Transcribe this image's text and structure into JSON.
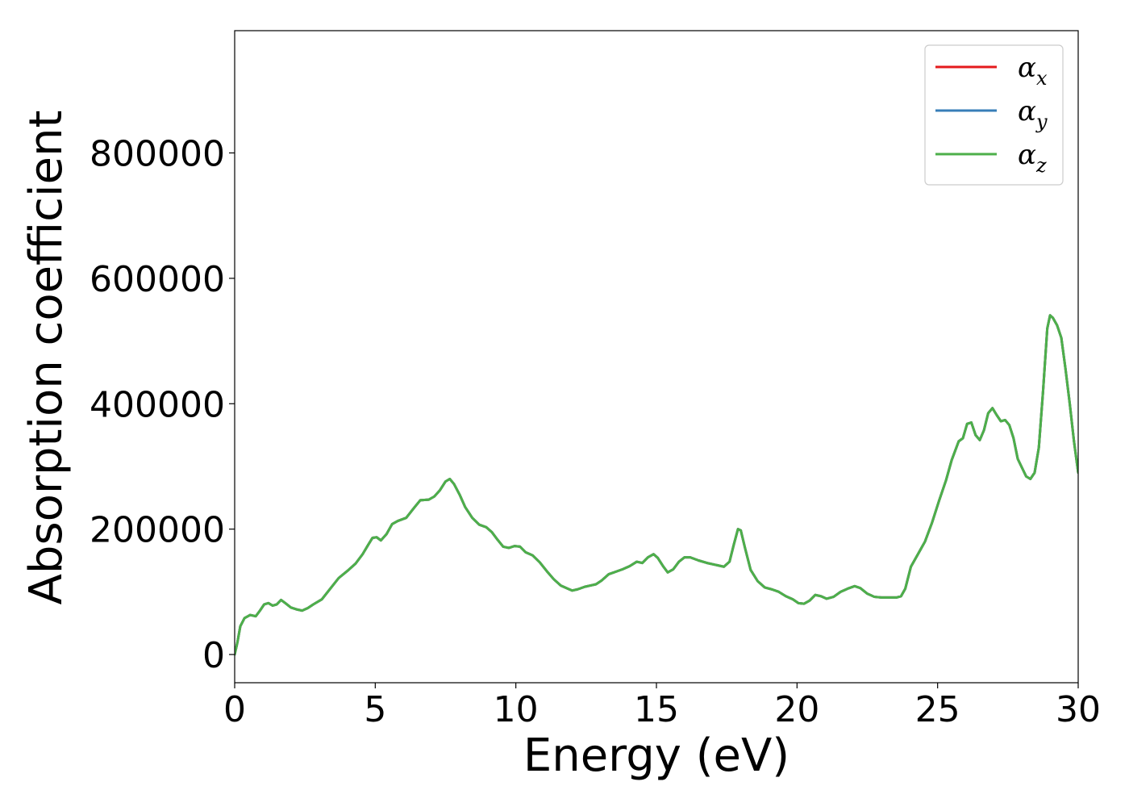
{
  "chart_data": {
    "type": "line",
    "title": "",
    "xlabel": "Energy (eV)",
    "ylabel": "Absorption coefficient",
    "xlim": [
      0,
      30
    ],
    "ylim": [
      -45000,
      995000
    ],
    "x_ticks": [
      0,
      5,
      10,
      15,
      20,
      25,
      30
    ],
    "y_ticks": [
      0,
      200000,
      400000,
      600000,
      800000
    ],
    "x_tick_labels": [
      "0",
      "5",
      "10",
      "15",
      "20",
      "25",
      "30"
    ],
    "y_tick_labels": [
      "0",
      "200000",
      "400000",
      "600000",
      "800000"
    ],
    "grid": false,
    "legend_position": "upper right",
    "series": [
      {
        "name": "αx",
        "legend_base": "α",
        "legend_sub": "x",
        "color": "#e41a1c",
        "values_ref": "shared"
      },
      {
        "name": "αy",
        "legend_base": "α",
        "legend_sub": "y",
        "color": "#377eb8",
        "values_ref": "shared"
      },
      {
        "name": "αz",
        "legend_base": "α",
        "legend_sub": "z",
        "color": "#4daf4a",
        "values_ref": "shared"
      }
    ],
    "shared_values": [
      [
        0.0,
        0
      ],
      [
        0.1,
        20000
      ],
      [
        0.2,
        45000
      ],
      [
        0.35,
        58000
      ],
      [
        0.55,
        63000
      ],
      [
        0.75,
        61000
      ],
      [
        0.9,
        70000
      ],
      [
        1.05,
        80000
      ],
      [
        1.2,
        82000
      ],
      [
        1.35,
        78000
      ],
      [
        1.5,
        80000
      ],
      [
        1.65,
        87000
      ],
      [
        1.8,
        82000
      ],
      [
        2.0,
        75000
      ],
      [
        2.2,
        72000
      ],
      [
        2.4,
        70000
      ],
      [
        2.6,
        74000
      ],
      [
        2.8,
        80000
      ],
      [
        3.1,
        88000
      ],
      [
        3.4,
        105000
      ],
      [
        3.7,
        122000
      ],
      [
        4.0,
        133000
      ],
      [
        4.3,
        145000
      ],
      [
        4.55,
        160000
      ],
      [
        4.75,
        175000
      ],
      [
        4.9,
        186000
      ],
      [
        5.05,
        187000
      ],
      [
        5.2,
        182000
      ],
      [
        5.4,
        192000
      ],
      [
        5.6,
        208000
      ],
      [
        5.8,
        213000
      ],
      [
        6.1,
        218000
      ],
      [
        6.4,
        235000
      ],
      [
        6.6,
        246000
      ],
      [
        6.9,
        247000
      ],
      [
        7.1,
        252000
      ],
      [
        7.3,
        262000
      ],
      [
        7.5,
        276000
      ],
      [
        7.65,
        280000
      ],
      [
        7.8,
        272000
      ],
      [
        8.0,
        255000
      ],
      [
        8.2,
        235000
      ],
      [
        8.45,
        218000
      ],
      [
        8.7,
        207000
      ],
      [
        8.95,
        203000
      ],
      [
        9.15,
        195000
      ],
      [
        9.35,
        183000
      ],
      [
        9.55,
        172000
      ],
      [
        9.75,
        170000
      ],
      [
        9.95,
        173000
      ],
      [
        10.15,
        172000
      ],
      [
        10.35,
        163000
      ],
      [
        10.6,
        158000
      ],
      [
        10.85,
        147000
      ],
      [
        11.1,
        133000
      ],
      [
        11.35,
        120000
      ],
      [
        11.6,
        110000
      ],
      [
        11.85,
        105000
      ],
      [
        12.0,
        102000
      ],
      [
        12.2,
        104000
      ],
      [
        12.45,
        108000
      ],
      [
        12.65,
        110000
      ],
      [
        12.85,
        112000
      ],
      [
        13.05,
        118000
      ],
      [
        13.3,
        128000
      ],
      [
        13.55,
        132000
      ],
      [
        13.8,
        136000
      ],
      [
        14.05,
        141000
      ],
      [
        14.3,
        148000
      ],
      [
        14.5,
        146000
      ],
      [
        14.7,
        155000
      ],
      [
        14.9,
        160000
      ],
      [
        15.05,
        154000
      ],
      [
        15.25,
        140000
      ],
      [
        15.4,
        131000
      ],
      [
        15.6,
        136000
      ],
      [
        15.8,
        148000
      ],
      [
        16.0,
        155000
      ],
      [
        16.2,
        155000
      ],
      [
        16.5,
        150000
      ],
      [
        16.8,
        146000
      ],
      [
        17.1,
        143000
      ],
      [
        17.4,
        140000
      ],
      [
        17.6,
        148000
      ],
      [
        17.75,
        175000
      ],
      [
        17.9,
        200000
      ],
      [
        18.0,
        198000
      ],
      [
        18.15,
        170000
      ],
      [
        18.35,
        135000
      ],
      [
        18.6,
        117000
      ],
      [
        18.85,
        107000
      ],
      [
        19.1,
        104000
      ],
      [
        19.35,
        100000
      ],
      [
        19.6,
        93000
      ],
      [
        19.85,
        88000
      ],
      [
        20.05,
        82000
      ],
      [
        20.25,
        81000
      ],
      [
        20.45,
        86000
      ],
      [
        20.65,
        95000
      ],
      [
        20.85,
        93000
      ],
      [
        21.05,
        89000
      ],
      [
        21.3,
        92000
      ],
      [
        21.55,
        100000
      ],
      [
        21.8,
        105000
      ],
      [
        22.05,
        109000
      ],
      [
        22.25,
        106000
      ],
      [
        22.5,
        97000
      ],
      [
        22.75,
        92000
      ],
      [
        23.0,
        91000
      ],
      [
        23.3,
        91000
      ],
      [
        23.55,
        91000
      ],
      [
        23.7,
        93000
      ],
      [
        23.85,
        105000
      ],
      [
        24.05,
        140000
      ],
      [
        24.3,
        160000
      ],
      [
        24.55,
        180000
      ],
      [
        24.8,
        210000
      ],
      [
        25.05,
        245000
      ],
      [
        25.3,
        278000
      ],
      [
        25.5,
        310000
      ],
      [
        25.75,
        340000
      ],
      [
        25.9,
        345000
      ],
      [
        26.05,
        368000
      ],
      [
        26.2,
        370000
      ],
      [
        26.35,
        350000
      ],
      [
        26.5,
        342000
      ],
      [
        26.65,
        358000
      ],
      [
        26.8,
        385000
      ],
      [
        26.95,
        393000
      ],
      [
        27.1,
        382000
      ],
      [
        27.25,
        372000
      ],
      [
        27.4,
        374000
      ],
      [
        27.55,
        366000
      ],
      [
        27.7,
        345000
      ],
      [
        27.85,
        312000
      ],
      [
        28.0,
        298000
      ],
      [
        28.15,
        284000
      ],
      [
        28.3,
        280000
      ],
      [
        28.45,
        290000
      ],
      [
        28.6,
        330000
      ],
      [
        28.75,
        420000
      ],
      [
        28.9,
        520000
      ],
      [
        29.0,
        541000
      ],
      [
        29.1,
        537000
      ],
      [
        29.25,
        525000
      ],
      [
        29.4,
        505000
      ],
      [
        29.55,
        455000
      ],
      [
        29.7,
        400000
      ],
      [
        29.85,
        340000
      ],
      [
        30.0,
        290000
      ]
    ]
  }
}
